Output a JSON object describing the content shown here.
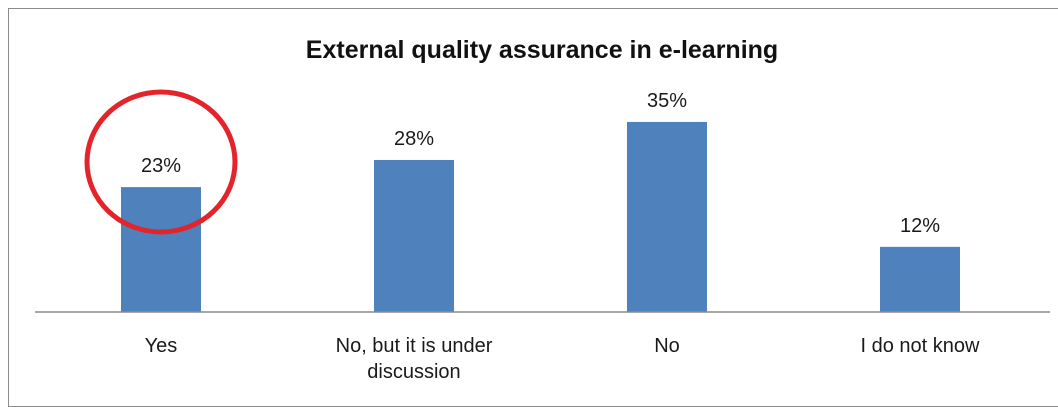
{
  "chart_data": {
    "type": "bar",
    "title": "External quality assurance in e-learning",
    "xlabel": "",
    "ylabel": "",
    "categories": [
      "Yes",
      "No, but it is under discussion",
      "No",
      "I do not know"
    ],
    "category_lines": [
      [
        "Yes"
      ],
      [
        "No, but it is under",
        "discussion"
      ],
      [
        "No"
      ],
      [
        "I do not know"
      ]
    ],
    "values": [
      23,
      28,
      35,
      12
    ],
    "data_labels": [
      "23%",
      "28%",
      "35%",
      "12%"
    ],
    "ylim": [
      0,
      40
    ],
    "grid": false,
    "legend": "none",
    "bar_color": "#4f81bd",
    "highlight": {
      "category_index": 0,
      "shape": "circle",
      "color": "#e3242b"
    }
  }
}
